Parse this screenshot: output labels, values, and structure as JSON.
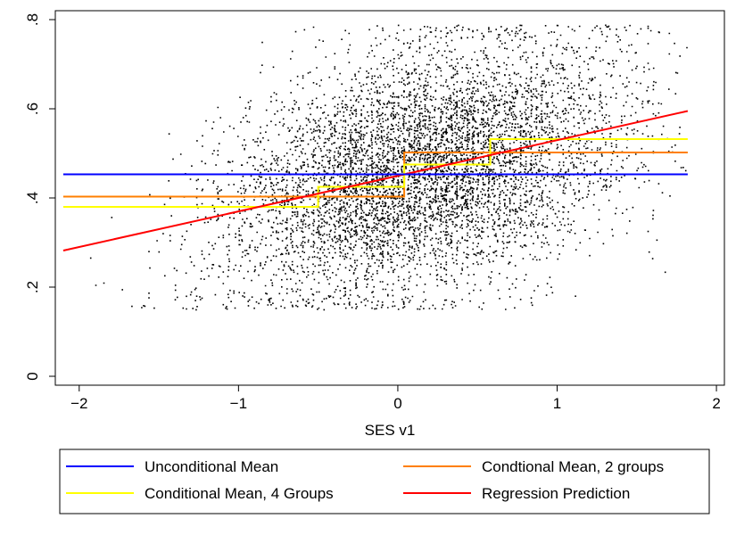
{
  "chart_data": {
    "type": "scatter",
    "title": "",
    "xlabel": "SES v1",
    "ylabel": "",
    "xlim": [
      -2.15,
      2.05
    ],
    "ylim": [
      -0.02,
      0.82
    ],
    "x_ticks": [
      -2,
      -1,
      0,
      1,
      2
    ],
    "x_tick_labels": [
      "−2",
      "−1",
      "0",
      "1",
      "2"
    ],
    "y_ticks": [
      0,
      0.2,
      0.4,
      0.6,
      0.8
    ],
    "y_tick_labels": [
      "0",
      ".2",
      ".4",
      ".6",
      ".8"
    ],
    "grid": false,
    "legend_placement": "bottom",
    "scatter_points": {
      "note_kind": "dense cloud of black dots",
      "color": "#000000",
      "x_range": [
        -2.1,
        1.82
      ],
      "y_range": [
        0.15,
        0.79
      ],
      "mean_y_at_x_start": 0.28,
      "mean_y_at_x_end": 0.6
    },
    "series": [
      {
        "name": "Unconditional Mean",
        "color": "#0000ff",
        "x": [
          -2.1,
          1.82
        ],
        "y": [
          0.453,
          0.453
        ]
      },
      {
        "name": "Condtional Mean, 2 groups",
        "color": "#ff7f00",
        "x": [
          -2.1,
          0.04,
          0.04,
          1.82
        ],
        "y": [
          0.403,
          0.403,
          0.502,
          0.502
        ]
      },
      {
        "name": "Conditional Mean, 4 Groups",
        "color": "#ffff00",
        "x": [
          -2.1,
          -0.5,
          -0.5,
          0.04,
          0.04,
          0.58,
          0.58,
          1.82
        ],
        "y": [
          0.38,
          0.38,
          0.425,
          0.425,
          0.475,
          0.475,
          0.532,
          0.532
        ]
      },
      {
        "name": "Regression Prediction",
        "color": "#ff0000",
        "x": [
          -2.1,
          1.82
        ],
        "y": [
          0.282,
          0.595
        ]
      }
    ],
    "legend_order": [
      0,
      1,
      2,
      3
    ]
  }
}
